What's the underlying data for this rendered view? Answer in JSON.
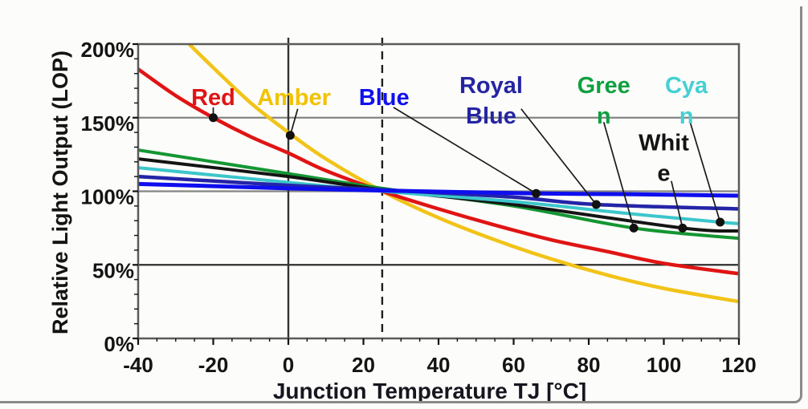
{
  "chart_data": {
    "type": "line",
    "title": "",
    "xlabel": "Junction Temperature TJ [°C]",
    "ylabel": "Relative Light Output (LOP)",
    "xlim": [
      -40,
      120
    ],
    "ylim": [
      0,
      200
    ],
    "x_ticks": [
      -40,
      -20,
      0,
      20,
      40,
      60,
      80,
      100,
      120
    ],
    "x_tick_labels": [
      "-40",
      "-20",
      "0",
      "20",
      "40",
      "60",
      "80",
      "100",
      "120"
    ],
    "x_minor_step": 5,
    "y_ticks": [
      0,
      50,
      100,
      150,
      200
    ],
    "y_tick_labels": [
      "0%",
      "50%",
      "100%",
      "150%",
      "200%"
    ],
    "y_minor_step": 10,
    "grid_on": true,
    "grid_y": [
      {
        "value": 150,
        "color": "#848484"
      },
      {
        "value": 100,
        "color": "#848484"
      },
      {
        "value": 50,
        "color": "#2f2f2f"
      }
    ],
    "ref_lines": [
      {
        "x": 0,
        "style": "solid",
        "color": "#333333"
      },
      {
        "x": 25,
        "style": "dashed",
        "color": "#1f1f1f"
      }
    ],
    "series": [
      {
        "name": "Amber",
        "color": "#F2C318",
        "width": 4.5,
        "points": [
          [
            -28,
            204
          ],
          [
            -20,
            184
          ],
          [
            -10,
            160
          ],
          [
            0,
            140
          ],
          [
            10,
            122
          ],
          [
            25,
            100
          ],
          [
            40,
            82
          ],
          [
            55,
            67
          ],
          [
            70,
            54
          ],
          [
            85,
            43
          ],
          [
            100,
            34
          ],
          [
            120,
            25
          ]
        ]
      },
      {
        "name": "Red",
        "color": "#E01414",
        "width": 4.5,
        "points": [
          [
            -40,
            183
          ],
          [
            -30,
            165
          ],
          [
            -20,
            150
          ],
          [
            -10,
            137
          ],
          [
            0,
            126
          ],
          [
            10,
            114
          ],
          [
            25,
            100
          ],
          [
            40,
            88
          ],
          [
            55,
            77
          ],
          [
            70,
            67
          ],
          [
            85,
            59
          ],
          [
            100,
            51
          ],
          [
            120,
            44
          ]
        ]
      },
      {
        "name": "Green",
        "color": "#149632",
        "width": 4,
        "points": [
          [
            -40,
            128
          ],
          [
            0,
            112
          ],
          [
            25,
            102
          ],
          [
            60,
            90
          ],
          [
            92,
            75
          ],
          [
            120,
            68
          ]
        ]
      },
      {
        "name": "White",
        "color": "#141414",
        "width": 4,
        "points": [
          [
            -40,
            122
          ],
          [
            0,
            110
          ],
          [
            25,
            101
          ],
          [
            60,
            91
          ],
          [
            105,
            75
          ],
          [
            120,
            73
          ]
        ]
      },
      {
        "name": "Cyan",
        "color": "#3CC6CC",
        "width": 4,
        "points": [
          [
            -40,
            116
          ],
          [
            0,
            106
          ],
          [
            25,
            100
          ],
          [
            60,
            93
          ],
          [
            90,
            85
          ],
          [
            115,
            79
          ],
          [
            120,
            78
          ]
        ]
      },
      {
        "name": "Royal Blue",
        "color": "#2424A8",
        "width": 4.5,
        "points": [
          [
            -40,
            110
          ],
          [
            0,
            104
          ],
          [
            25,
            101
          ],
          [
            60,
            96
          ],
          [
            82,
            91
          ],
          [
            120,
            88
          ]
        ]
      },
      {
        "name": "Blue",
        "color": "#0E0EEE",
        "width": 5,
        "points": [
          [
            -40,
            105
          ],
          [
            0,
            102
          ],
          [
            25,
            100.5
          ],
          [
            66,
            98.5
          ],
          [
            90,
            98
          ],
          [
            120,
            97
          ]
        ]
      }
    ],
    "annotations": [
      {
        "name": "Red",
        "lines": [
          "Red"
        ],
        "color": "#E01414",
        "pos": [
          -20,
          164
        ],
        "leader_from": [
          -20,
          157
        ],
        "dot": [
          -20,
          150
        ]
      },
      {
        "name": "Amber",
        "lines": [
          "Amber"
        ],
        "color": "#F2C200",
        "pos": [
          1.5,
          164
        ],
        "leader_from": [
          2.5,
          156
        ],
        "dot": [
          0.5,
          138
        ]
      },
      {
        "name": "Blue",
        "lines": [
          "Blue"
        ],
        "color": "#1010F0",
        "pos": [
          25.5,
          164
        ],
        "leader_from": [
          28,
          157
        ],
        "dot": [
          66,
          98.5
        ]
      },
      {
        "name": "Royal Blue",
        "lines": [
          "Royal",
          "Blue"
        ],
        "color": "#2525A2",
        "pos": [
          54,
          164
        ],
        "leader_from": [
          62,
          156
        ],
        "dot": [
          82,
          91
        ]
      },
      {
        "name": "Green",
        "lines": [
          "Gree",
          "n"
        ],
        "color": "#0FA040",
        "pos": [
          84,
          164
        ],
        "leader_from": [
          84,
          147
        ],
        "dot": [
          92,
          75
        ]
      },
      {
        "name": "Cyan",
        "lines": [
          "Cya",
          "n"
        ],
        "color": "#45D0D4",
        "pos": [
          106,
          164
        ],
        "leader_from": [
          107,
          147
        ],
        "dot": [
          115,
          79
        ]
      },
      {
        "name": "White",
        "lines": [
          "Whit",
          "e"
        ],
        "color": "#141414",
        "pos": [
          100,
          125
        ],
        "leader_from": [
          102,
          107
        ],
        "dot": [
          105,
          75
        ]
      }
    ],
    "legend": "labels-on-chart"
  },
  "style": {
    "plot_border_color": "#5a5a5a",
    "frame_color": "#8a8a8a",
    "background": "#fcfcfa",
    "dot_color": "#111111",
    "leader_color": "#1a1a1a"
  }
}
